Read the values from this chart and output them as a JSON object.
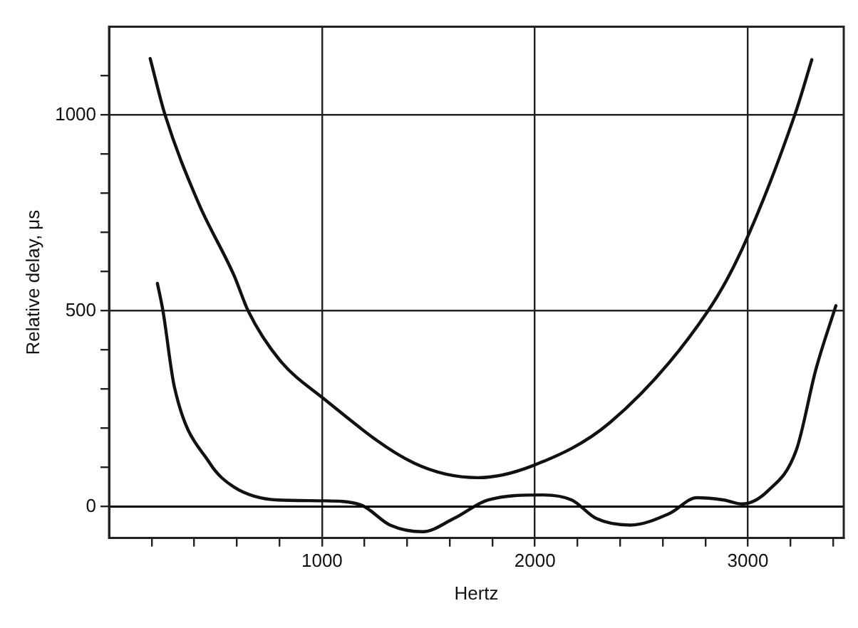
{
  "chart_data": {
    "type": "line",
    "xlabel": "Hertz",
    "ylabel": "Relative delay, μs",
    "xlim": [
      0,
      3450
    ],
    "ylim": [
      -80,
      1225
    ],
    "xticks": [
      {
        "value": 200,
        "label": null
      },
      {
        "value": 400,
        "label": null
      },
      {
        "value": 600,
        "label": null
      },
      {
        "value": 800,
        "label": null
      },
      1000,
      {
        "value": 1200,
        "label": null
      },
      {
        "value": 1400,
        "label": null
      },
      {
        "value": 1600,
        "label": null
      },
      {
        "value": 1800,
        "label": null
      },
      2000,
      {
        "value": 2200,
        "label": null
      },
      {
        "value": 2400,
        "label": null
      },
      {
        "value": 2600,
        "label": null
      },
      {
        "value": 2800,
        "label": null
      },
      3000,
      {
        "value": 3200,
        "label": null
      },
      {
        "value": 3400,
        "label": null
      }
    ],
    "yticks": [
      0,
      {
        "value": 100,
        "label": null
      },
      {
        "value": 200,
        "label": null
      },
      {
        "value": 300,
        "label": null
      },
      {
        "value": 400,
        "label": null
      },
      500,
      {
        "value": 600,
        "label": null
      },
      {
        "value": 700,
        "label": null
      },
      {
        "value": 800,
        "label": null
      },
      {
        "value": 900,
        "label": null
      },
      1000,
      {
        "value": 1100,
        "label": null
      }
    ],
    "grid": true,
    "legend": false,
    "marker": "none",
    "line_style": "solid",
    "ref_lines": [
      {
        "axis": "y",
        "value": 0,
        "color": "#000000"
      }
    ],
    "series": [
      {
        "color": "#111111",
        "x": [
          193,
          263,
          420,
          587,
          653,
          800,
          1000,
          1433,
          1733,
          1987,
          2353,
          2813,
          2973,
          3220,
          3300
        ],
        "values": [
          1144,
          1000,
          775,
          590,
          500,
          375,
          279,
          111,
          74,
          104,
          215,
          500,
          658,
          1000,
          1141
        ]
      },
      {
        "color": "#111111",
        "x": [
          227,
          253,
          307,
          473,
          587,
          793,
          1000,
          1180,
          1320,
          1473,
          1620,
          1780,
          2033,
          2173,
          2287,
          2447,
          2633,
          2760,
          2887,
          2973,
          3093,
          3227,
          3320,
          3413
        ],
        "values": [
          570,
          500,
          305,
          111,
          50,
          17,
          15,
          5,
          -47,
          -64,
          -30,
          17,
          30,
          17,
          -30,
          -47,
          -17,
          23,
          17,
          7,
          40,
          144,
          352,
          513
        ]
      }
    ]
  }
}
